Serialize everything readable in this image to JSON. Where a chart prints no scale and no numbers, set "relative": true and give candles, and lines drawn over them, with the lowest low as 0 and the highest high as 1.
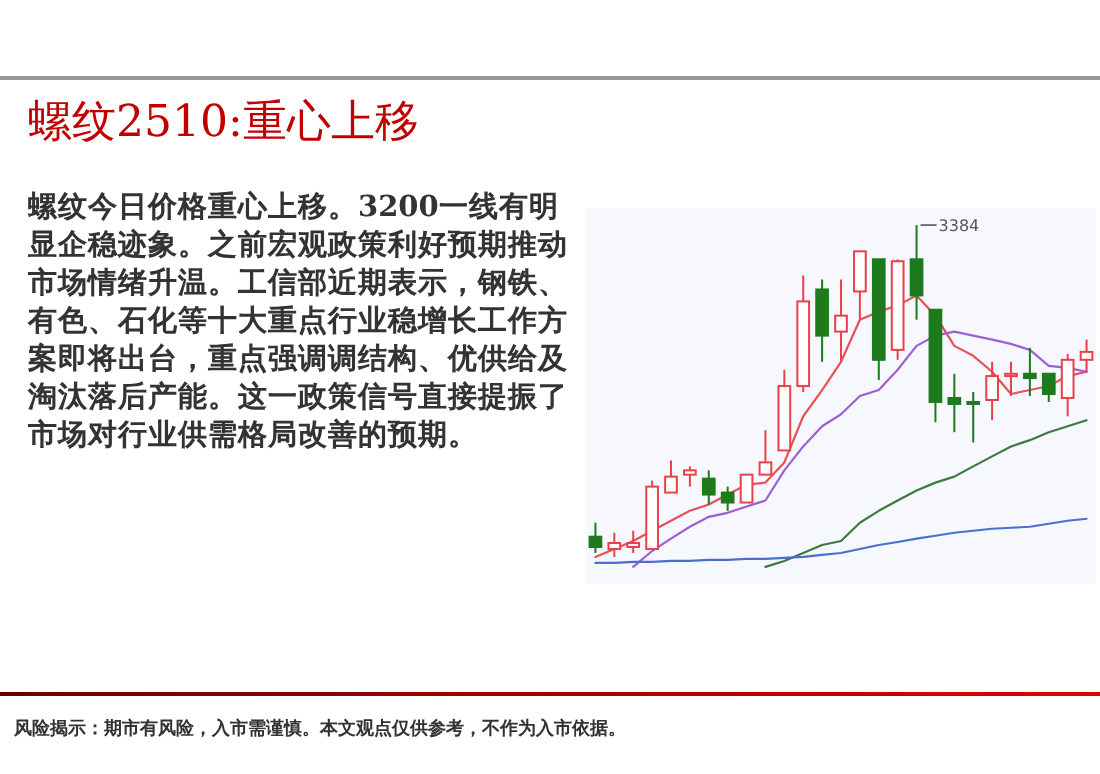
{
  "chart_data": {
    "type": "candlestick",
    "title": "螺纹2510:重心上移",
    "relative": true,
    "categories": [
      null,
      null,
      null,
      null,
      null,
      null,
      null,
      null,
      null,
      null,
      null,
      null,
      null,
      null,
      null,
      null,
      null,
      null,
      null,
      null,
      null,
      null,
      null,
      null,
      null,
      null,
      null
    ],
    "ohlc": [
      [
        0.061,
        0.103,
        0.012,
        0.03
      ],
      [
        0.024,
        0.073,
        0,
        0.042
      ],
      [
        0.03,
        0.079,
        0.012,
        0.042
      ],
      [
        0.024,
        0.23,
        0.024,
        0.212
      ],
      [
        0.194,
        0.291,
        0.194,
        0.242
      ],
      [
        0.248,
        0.273,
        0.212,
        0.261
      ],
      [
        0.236,
        0.261,
        0.158,
        0.188
      ],
      [
        0.194,
        0.212,
        0.139,
        0.164
      ],
      [
        0.164,
        0.248,
        0.164,
        0.248
      ],
      [
        0.248,
        0.382,
        0.248,
        0.285
      ],
      [
        0.321,
        0.564,
        0.321,
        0.515
      ],
      [
        0.515,
        0.848,
        0.497,
        0.77
      ],
      [
        0.806,
        0.836,
        0.588,
        0.667
      ],
      [
        0.679,
        0.836,
        0.588,
        0.727
      ],
      [
        0.8,
        0.921,
        0.715,
        0.921
      ],
      [
        0.897,
        0.897,
        0.533,
        0.594
      ],
      [
        0.624,
        0.897,
        0.594,
        0.891
      ],
      [
        0.897,
        1,
        0.715,
        0.788
      ],
      [
        0.745,
        0.745,
        0.406,
        0.467
      ],
      [
        0.479,
        0.552,
        0.376,
        0.461
      ],
      [
        0.467,
        0.497,
        0.345,
        0.461
      ],
      [
        0.473,
        0.588,
        0.412,
        0.545
      ],
      [
        0.545,
        0.588,
        0.485,
        0.552
      ],
      [
        0.552,
        0.63,
        0.485,
        0.539
      ],
      [
        0.552,
        0.552,
        0.467,
        0.491
      ],
      [
        0.479,
        0.612,
        0.424,
        0.594
      ],
      [
        0.594,
        0.655,
        0.558,
        0.618
      ]
    ],
    "series": [
      {
        "type": "line",
        "color": "#e8505a",
        "values": [
          0,
          0.024,
          0.048,
          0.079,
          0.109,
          0.139,
          0.158,
          0.188,
          0.218,
          0.224,
          0.285,
          0.424,
          0.503,
          0.588,
          0.715,
          0.739,
          0.758,
          0.788,
          0.727,
          0.636,
          0.606,
          0.558,
          0.491,
          0.503,
          0.515,
          0.545,
          0.558
        ]
      },
      {
        "type": "line",
        "color": "#9b5fd6",
        "values": [
          null,
          null,
          -0.03,
          0.018,
          0.055,
          0.091,
          0.121,
          0.133,
          0.152,
          0.17,
          0.261,
          0.333,
          0.394,
          0.43,
          0.485,
          0.503,
          0.564,
          0.636,
          0.667,
          0.679,
          0.667,
          0.655,
          0.642,
          0.624,
          0.576,
          0.57,
          0.558
        ]
      },
      {
        "type": "line",
        "color": "#3d7a3d",
        "values": [
          null,
          null,
          null,
          null,
          null,
          null,
          null,
          null,
          null,
          -0.03,
          -0.012,
          0.012,
          0.036,
          0.048,
          0.103,
          0.139,
          0.17,
          0.2,
          0.224,
          0.242,
          0.273,
          0.303,
          0.333,
          0.352,
          0.376,
          0.394,
          0.412
        ]
      },
      {
        "type": "line",
        "color": "#4a6fd0",
        "values": [
          -0.018,
          -0.018,
          -0.015,
          -0.015,
          -0.012,
          -0.012,
          -0.009,
          -0.009,
          -0.006,
          -0.006,
          -0.003,
          0,
          0.006,
          0.012,
          0.024,
          0.036,
          0.045,
          0.055,
          0.064,
          0.073,
          0.079,
          0.085,
          0.088,
          0.091,
          0.1,
          0.109,
          0.115
        ]
      }
    ],
    "annotations": [
      "3384",
      "螺纹今日价格重心上移。3200一线有明显企稳迹象。之前宏观政策利好预期推动市场情绪升温。工信部近期表示，钢铁、有色、石化等十大重点行业稳增长工作方案即将出台，重点强调调结构、优供给及淘汰落后产能。这一政策信号直接提振了市场对行业供需格局改善的预期。",
      "风险揭示：期市有风险，入市需谨慎。本文观点仅供参考，不作为入市依据。"
    ]
  }
}
